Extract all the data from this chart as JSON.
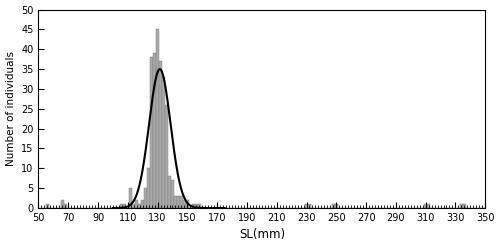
{
  "xlim": [
    50,
    350
  ],
  "ylim": [
    0,
    50
  ],
  "xlabel": "SL(mm)",
  "ylabel": "Number of individuals",
  "xticks": [
    50,
    70,
    90,
    110,
    130,
    150,
    170,
    190,
    210,
    230,
    250,
    270,
    290,
    310,
    330,
    350
  ],
  "yticks": [
    0,
    5,
    10,
    15,
    20,
    25,
    30,
    35,
    40,
    45,
    50
  ],
  "bar_color": "#aaaaaa",
  "bar_edgecolor": "#777777",
  "curve_color": "#000000",
  "curve_mean": 131.5,
  "curve_std": 7.2,
  "curve_amplitude": 35,
  "bin_size": 2,
  "bar_data": {
    "55": 1,
    "57": 0,
    "59": 0,
    "61": 0,
    "63": 0,
    "65": 2,
    "67": 1,
    "69": 0,
    "71": 0,
    "73": 0,
    "75": 0,
    "77": 0,
    "79": 0,
    "81": 0,
    "83": 0,
    "85": 0,
    "87": 0,
    "89": 0,
    "91": 0,
    "93": 0,
    "95": 0,
    "97": 0,
    "99": 0,
    "101": 0,
    "103": 0,
    "105": 1,
    "107": 1,
    "109": 0,
    "111": 5,
    "113": 1,
    "115": 2,
    "117": 1,
    "119": 2,
    "121": 5,
    "123": 10,
    "125": 38,
    "127": 39,
    "129": 45,
    "131": 37,
    "133": 33,
    "135": 26,
    "137": 8,
    "139": 7,
    "141": 3,
    "143": 3,
    "145": 3,
    "147": 2,
    "149": 2,
    "151": 0,
    "153": 1,
    "155": 1,
    "157": 1,
    "159": 0,
    "161": 0,
    "163": 0,
    "165": 0,
    "167": 0,
    "169": 0,
    "171": 0,
    "173": 0,
    "175": 0,
    "177": 0,
    "179": 0,
    "181": 0,
    "183": 0,
    "185": 0,
    "187": 0,
    "189": 0,
    "191": 0,
    "193": 0,
    "195": 0,
    "197": 0,
    "199": 0,
    "201": 0,
    "203": 0,
    "205": 0,
    "207": 0,
    "209": 0,
    "211": 0,
    "213": 0,
    "215": 0,
    "217": 0,
    "219": 0,
    "221": 0,
    "223": 0,
    "225": 0,
    "227": 0,
    "229": 1,
    "231": 1,
    "233": 0,
    "235": 0,
    "237": 0,
    "239": 0,
    "241": 0,
    "243": 0,
    "245": 0,
    "247": 1,
    "249": 1,
    "251": 0,
    "253": 0,
    "255": 0,
    "257": 0,
    "259": 0,
    "261": 0,
    "263": 0,
    "265": 0,
    "267": 0,
    "269": 0,
    "271": 0,
    "273": 0,
    "275": 0,
    "277": 0,
    "279": 0,
    "281": 0,
    "283": 0,
    "285": 0,
    "287": 0,
    "289": 0,
    "291": 0,
    "293": 0,
    "295": 0,
    "297": 0,
    "299": 0,
    "301": 0,
    "303": 0,
    "305": 0,
    "307": 0,
    "309": 1,
    "311": 1,
    "313": 0,
    "315": 0,
    "317": 0,
    "319": 0,
    "321": 0,
    "323": 0,
    "325": 0,
    "327": 0,
    "329": 0,
    "331": 0,
    "333": 1,
    "335": 1,
    "337": 0,
    "339": 0,
    "341": 0,
    "343": 0,
    "345": 0,
    "347": 0,
    "349": 0
  }
}
